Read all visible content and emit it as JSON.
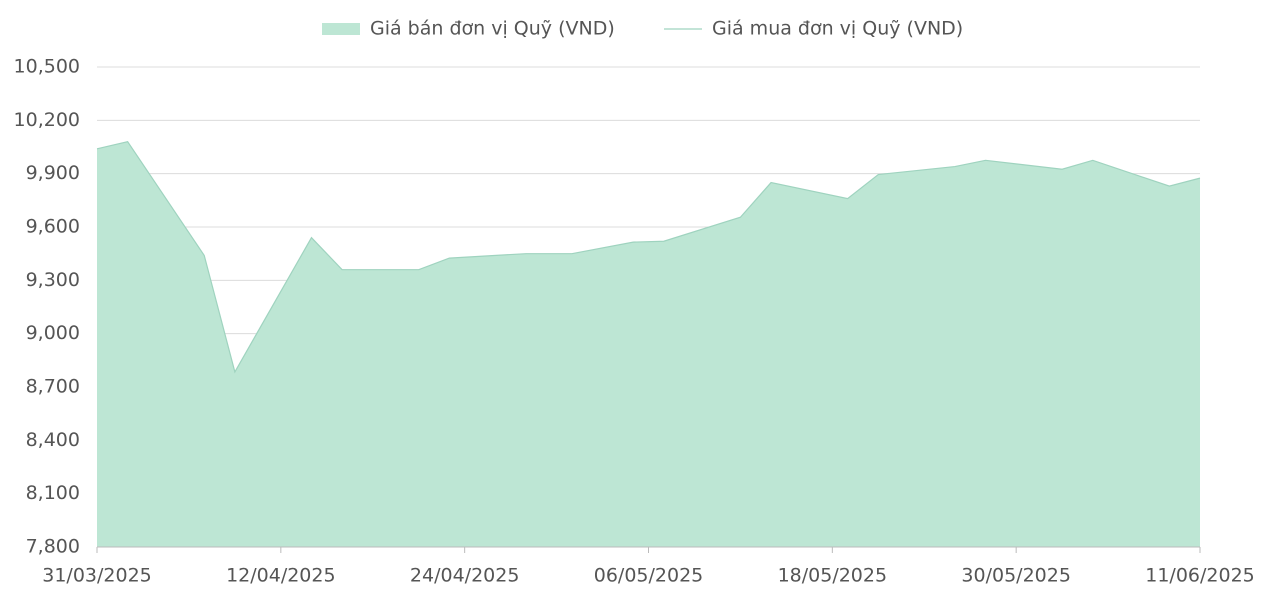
{
  "chart_data": {
    "type": "area",
    "x": [
      "31/03/2025",
      "02/04/2025",
      "07/04/2025",
      "09/04/2025",
      "14/04/2025",
      "16/04/2025",
      "21/04/2025",
      "23/04/2025",
      "28/04/2025",
      "01/05/2025",
      "05/05/2025",
      "07/05/2025",
      "12/05/2025",
      "14/05/2025",
      "19/05/2025",
      "21/05/2025",
      "26/05/2025",
      "28/05/2025",
      "02/06/2025",
      "04/06/2025",
      "09/06/2025",
      "11/06/2025"
    ],
    "series": [
      {
        "name": "Giá bán đơn vị Quỹ (VND)",
        "type": "area",
        "color": "#bde6d4",
        "values": [
          10040,
          10080,
          9440,
          8785,
          9540,
          9360,
          9360,
          9425,
          9450,
          9450,
          9515,
          9520,
          9655,
          9850,
          9760,
          9895,
          9940,
          9975,
          9925,
          9975,
          9830,
          9875
        ]
      },
      {
        "name": "Giá mua đơn vị Quỹ (VND)",
        "type": "line",
        "color": "#9fd3bf",
        "values": [
          10040,
          10080,
          9440,
          8785,
          9540,
          9360,
          9360,
          9425,
          9450,
          9450,
          9515,
          9520,
          9655,
          9850,
          9760,
          9895,
          9940,
          9975,
          9925,
          9975,
          9830,
          9875
        ]
      }
    ],
    "xlim": [
      "31/03/2025",
      "11/06/2025"
    ],
    "xticks": [
      "31/03/2025",
      "12/04/2025",
      "24/04/2025",
      "06/05/2025",
      "18/05/2025",
      "30/05/2025",
      "11/06/2025"
    ],
    "ylim": [
      7800,
      10500
    ],
    "yticks": [
      {
        "value": 7800,
        "label": "7,800"
      },
      {
        "value": 8100,
        "label": "8,100"
      },
      {
        "value": 8400,
        "label": "8,400"
      },
      {
        "value": 8700,
        "label": "8,700"
      },
      {
        "value": 9000,
        "label": "9,000"
      },
      {
        "value": 9300,
        "label": "9,300"
      },
      {
        "value": 9600,
        "label": "9,600"
      },
      {
        "value": 9900,
        "label": "9,900"
      },
      {
        "value": 10200,
        "label": "10,200"
      },
      {
        "value": 10500,
        "label": "10,500"
      }
    ],
    "grid": true,
    "legend": "top"
  }
}
